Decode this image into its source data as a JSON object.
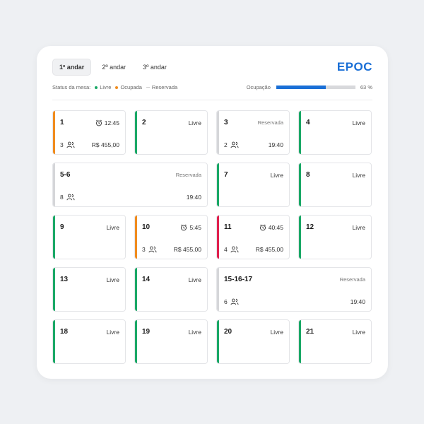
{
  "tabs": [
    {
      "label": "1º andar",
      "active": true
    },
    {
      "label": "2º andar",
      "active": false
    },
    {
      "label": "3º andar",
      "active": false
    }
  ],
  "brand": "EPOC",
  "legend": {
    "label": "Status da mesa:",
    "items": [
      {
        "label": "Livre",
        "color": "#1aa866",
        "marker": "dot"
      },
      {
        "label": "Ocupada",
        "color": "#f08c1e",
        "marker": "dot"
      },
      {
        "label": "Reservada",
        "color": "#c9cacd",
        "marker": "dash"
      }
    ]
  },
  "occupancy": {
    "label": "Ocupação",
    "value": "63 %",
    "fraction": 0.63
  },
  "colors": {
    "livre": "#1aa866",
    "ocupada": "#f08c1e",
    "alerta": "#e0204e",
    "reservada": "#d5d6d9"
  },
  "tables": [
    {
      "id": "1",
      "status": "ocupada",
      "time": "12:45",
      "guests": "3",
      "amount": "R$ 455,00"
    },
    {
      "id": "2",
      "status": "livre",
      "label": "Livre"
    },
    {
      "id": "3",
      "status": "reservada",
      "label": "Reservada",
      "guests": "2",
      "time_bottom": "19:40"
    },
    {
      "id": "4",
      "status": "livre",
      "label": "Livre"
    },
    {
      "id": "5-6",
      "status": "reservada",
      "label": "Reservada",
      "guests": "8",
      "time_bottom": "19:40"
    },
    {
      "id": "7",
      "status": "livre",
      "label": "Livre"
    },
    {
      "id": "8",
      "status": "livre",
      "label": "Livre"
    },
    {
      "id": "9",
      "status": "livre",
      "label": "Livre"
    },
    {
      "id": "10",
      "status": "ocupada",
      "time": "5:45",
      "guests": "3",
      "amount": "R$ 455,00"
    },
    {
      "id": "11",
      "status": "alerta",
      "time": "40:45",
      "guests": "4",
      "amount": "R$ 455,00"
    },
    {
      "id": "12",
      "status": "livre",
      "label": "Livre"
    },
    {
      "id": "13",
      "status": "livre",
      "label": "Livre"
    },
    {
      "id": "14",
      "status": "livre",
      "label": "Livre"
    },
    {
      "id": "15-16-17",
      "status": "reservada",
      "label": "Reservada",
      "guests": "6",
      "time_bottom": "19:40"
    },
    {
      "id": "18",
      "status": "livre",
      "label": "Livre"
    },
    {
      "id": "19",
      "status": "livre",
      "label": "Livre"
    },
    {
      "id": "20",
      "status": "livre",
      "label": "Livre"
    },
    {
      "id": "21",
      "status": "livre",
      "label": "Livre"
    }
  ]
}
